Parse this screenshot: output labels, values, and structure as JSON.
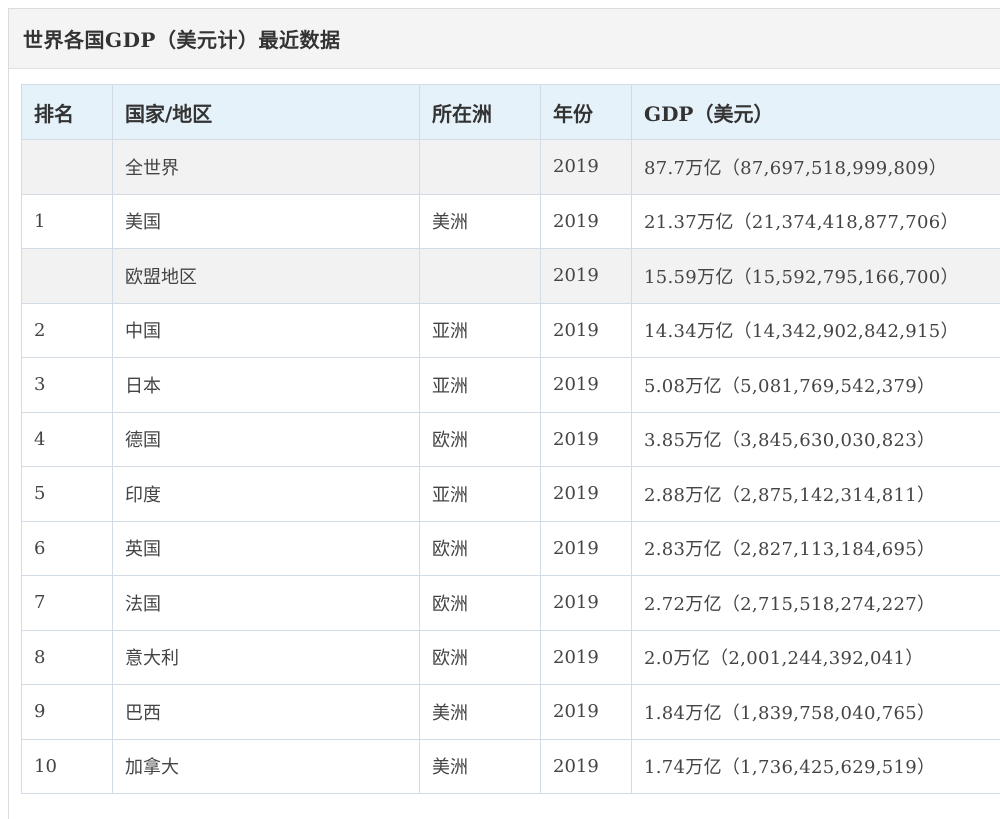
{
  "title": "世界各国GDP（美元计）最近数据",
  "columns": [
    "排名",
    "国家/地区",
    "所在洲",
    "年份",
    "GDP（美元）"
  ],
  "rows": [
    {
      "rank": "",
      "country": "全世界",
      "continent": "",
      "year": "2019",
      "gdp": "87.7万亿（87,697,518,999,809）",
      "aggregate": true
    },
    {
      "rank": "1",
      "country": "美国",
      "continent": "美洲",
      "year": "2019",
      "gdp": "21.37万亿（21,374,418,877,706）",
      "aggregate": false
    },
    {
      "rank": "",
      "country": "欧盟地区",
      "continent": "",
      "year": "2019",
      "gdp": "15.59万亿（15,592,795,166,700）",
      "aggregate": true
    },
    {
      "rank": "2",
      "country": "中国",
      "continent": "亚洲",
      "year": "2019",
      "gdp": "14.34万亿（14,342,902,842,915）",
      "aggregate": false
    },
    {
      "rank": "3",
      "country": "日本",
      "continent": "亚洲",
      "year": "2019",
      "gdp": "5.08万亿（5,081,769,542,379）",
      "aggregate": false
    },
    {
      "rank": "4",
      "country": "德国",
      "continent": "欧洲",
      "year": "2019",
      "gdp": "3.85万亿（3,845,630,030,823）",
      "aggregate": false
    },
    {
      "rank": "5",
      "country": "印度",
      "continent": "亚洲",
      "year": "2019",
      "gdp": "2.88万亿（2,875,142,314,811）",
      "aggregate": false
    },
    {
      "rank": "6",
      "country": "英国",
      "continent": "欧洲",
      "year": "2019",
      "gdp": "2.83万亿（2,827,113,184,695）",
      "aggregate": false
    },
    {
      "rank": "7",
      "country": "法国",
      "continent": "欧洲",
      "year": "2019",
      "gdp": "2.72万亿（2,715,518,274,227）",
      "aggregate": false
    },
    {
      "rank": "8",
      "country": "意大利",
      "continent": "欧洲",
      "year": "2019",
      "gdp": "2.0万亿（2,001,244,392,041）",
      "aggregate": false
    },
    {
      "rank": "9",
      "country": "巴西",
      "continent": "美洲",
      "year": "2019",
      "gdp": "1.84万亿（1,839,758,040,765）",
      "aggregate": false
    },
    {
      "rank": "10",
      "country": "加拿大",
      "continent": "美洲",
      "year": "2019",
      "gdp": "1.74万亿（1,736,425,629,519）",
      "aggregate": false
    }
  ]
}
